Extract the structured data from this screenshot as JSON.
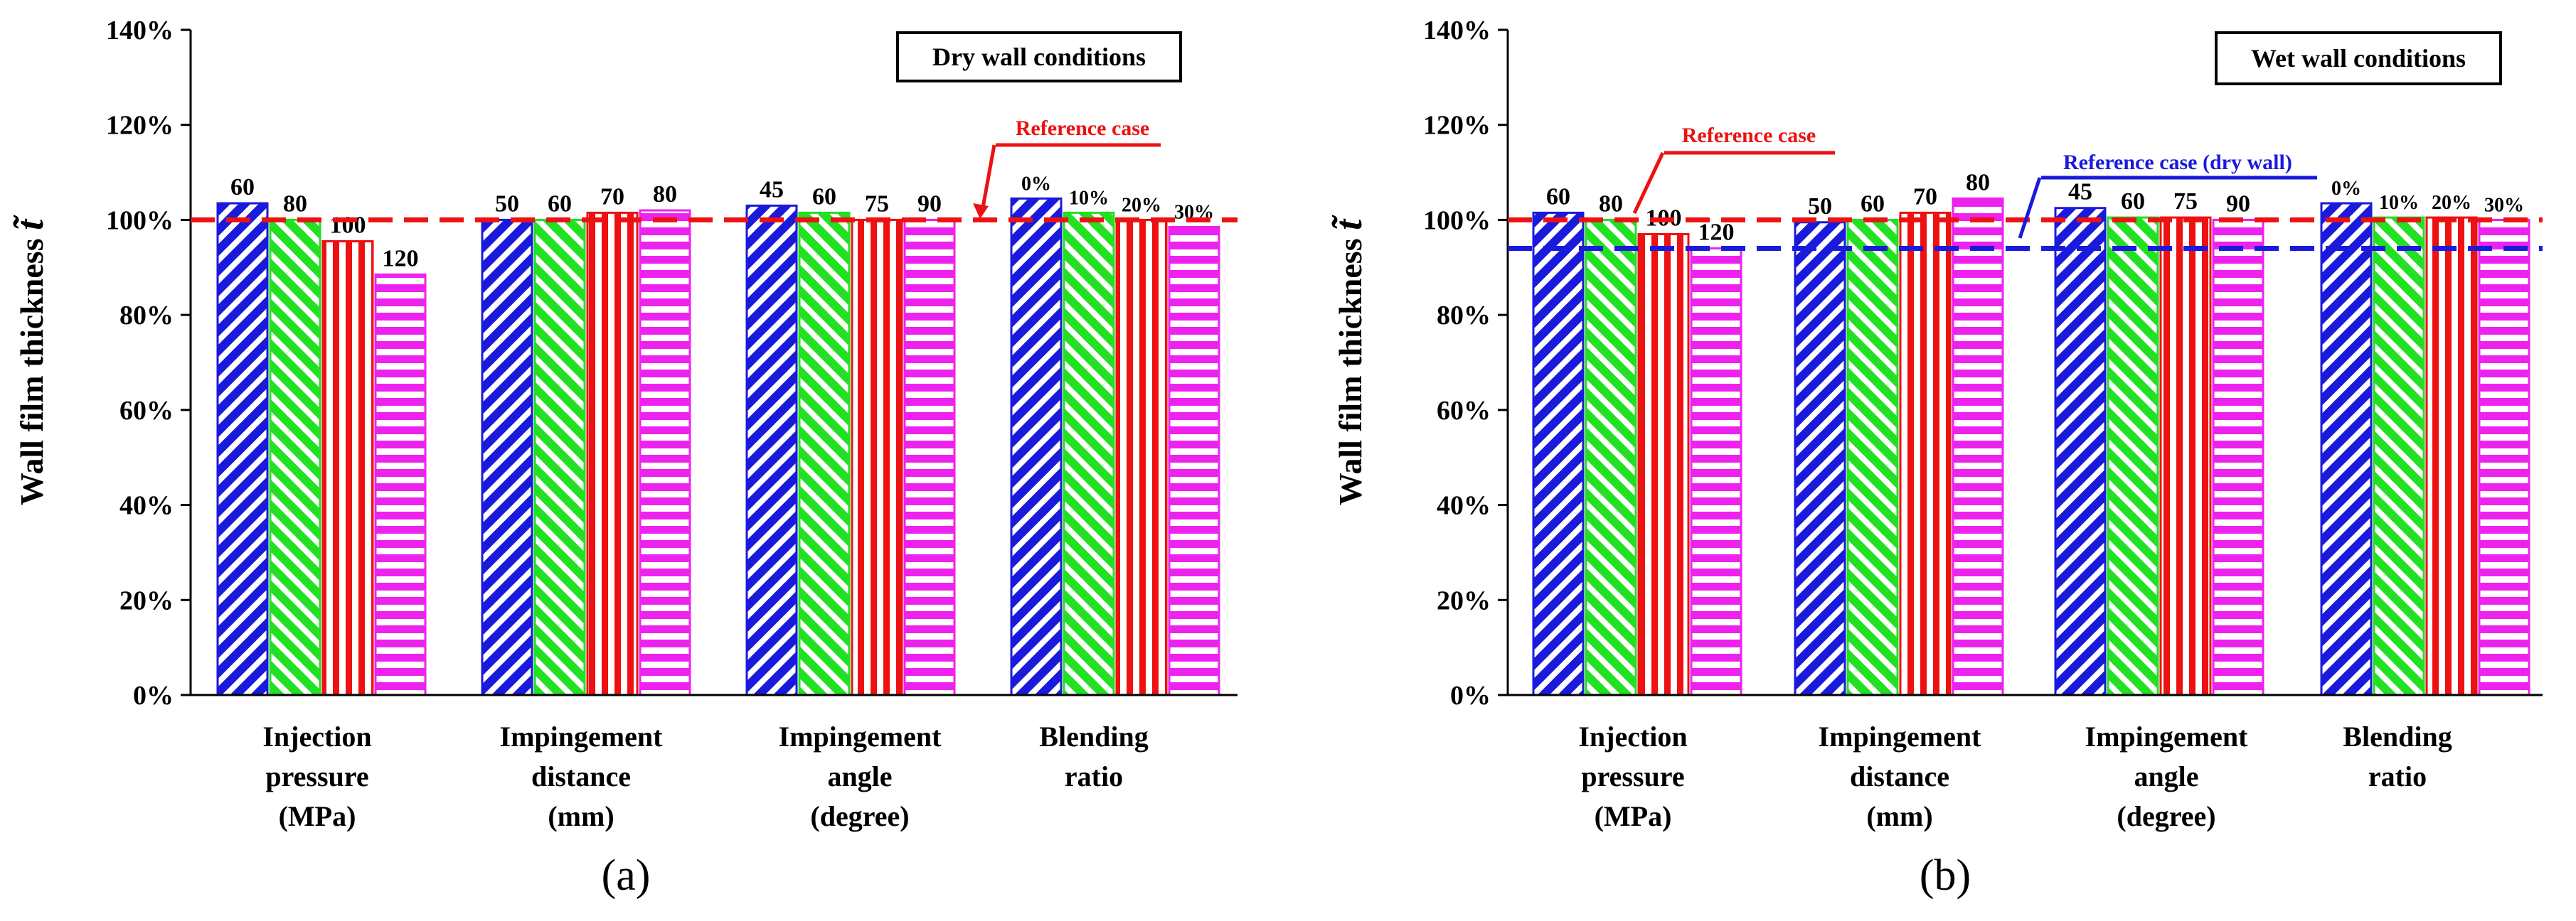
{
  "colors": {
    "blue": "#1a1adc",
    "green": "#22e022",
    "red": "#ee1111",
    "magenta": "#ee22ee",
    "ref_red": "#ee1111",
    "ref_blue": "#1a1adc",
    "axis": "#000000"
  },
  "chart_data": [
    {
      "type": "bar",
      "panel_label": "(a)",
      "title": "Dry wall conditions",
      "ylabel": "Wall film thickness",
      "ylabel_symbol": "t̃",
      "ylim": [
        0,
        140
      ],
      "yticks": [
        "0%",
        "20%",
        "40%",
        "60%",
        "80%",
        "100%",
        "120%",
        "140%"
      ],
      "categories": [
        {
          "label_lines": [
            "Injection",
            "pressure",
            "(MPa)"
          ],
          "bar_labels": [
            "60",
            "80",
            "100",
            "120"
          ],
          "values": [
            103.5,
            100,
            95.5,
            88.5
          ]
        },
        {
          "label_lines": [
            "Impingement",
            "distance",
            "(mm)"
          ],
          "bar_labels": [
            "50",
            "60",
            "70",
            "80"
          ],
          "values": [
            100,
            100,
            101.5,
            102
          ]
        },
        {
          "label_lines": [
            "Impingement",
            "angle",
            "(degree)"
          ],
          "bar_labels": [
            "45",
            "60",
            "75",
            "90"
          ],
          "values": [
            103,
            101.5,
            100,
            100
          ]
        },
        {
          "label_lines": [
            "Blending",
            "ratio"
          ],
          "bar_labels": [
            "0%",
            "10%",
            "20%",
            "30%"
          ],
          "values": [
            104.5,
            101.5,
            100,
            98.5
          ]
        }
      ],
      "reference_lines": [
        {
          "label": "Reference case",
          "value": 100,
          "style": "red"
        }
      ]
    },
    {
      "type": "bar",
      "panel_label": "(b)",
      "title": "Wet wall conditions",
      "ylabel": "Wall film thickness",
      "ylabel_symbol": "t̃",
      "ylim": [
        0,
        140
      ],
      "yticks": [
        "0%",
        "20%",
        "40%",
        "60%",
        "80%",
        "100%",
        "120%",
        "140%"
      ],
      "categories": [
        {
          "label_lines": [
            "Injection",
            "pressure",
            "(MPa)"
          ],
          "bar_labels": [
            "60",
            "80",
            "100",
            "120"
          ],
          "values": [
            101.5,
            100,
            97,
            94
          ]
        },
        {
          "label_lines": [
            "Impingement",
            "distance",
            "(mm)"
          ],
          "bar_labels": [
            "50",
            "60",
            "70",
            "80"
          ],
          "values": [
            99.5,
            100,
            101.5,
            104.5
          ]
        },
        {
          "label_lines": [
            "Impingement",
            "angle",
            "(degree)"
          ],
          "bar_labels": [
            "45",
            "60",
            "75",
            "90"
          ],
          "values": [
            102.5,
            100.5,
            100.5,
            100
          ]
        },
        {
          "label_lines": [
            "Blending",
            "ratio"
          ],
          "bar_labels": [
            "0%",
            "10%",
            "20%",
            "30%"
          ],
          "values": [
            103.5,
            100.5,
            100.5,
            100
          ]
        }
      ],
      "reference_lines": [
        {
          "label": "Reference case",
          "value": 100,
          "style": "red"
        },
        {
          "label": "Reference case (dry wall)",
          "value": 94,
          "style": "blue"
        }
      ]
    }
  ]
}
